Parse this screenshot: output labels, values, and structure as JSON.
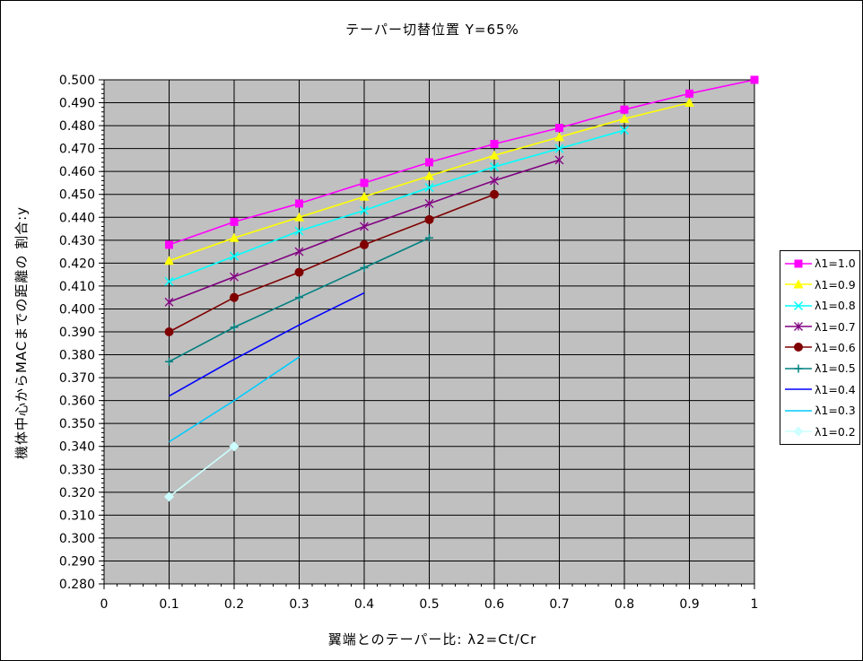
{
  "chart": {
    "title": "テーパー切替位置 Y=65%"
  },
  "chart_data": {
    "type": "line",
    "title": "テーパー切替位置 Y=65%",
    "xlabel": "翼端とのテーパー比: λ2=Ct/Cr",
    "ylabel": "機体中心からMACまでの距離の 割合:y",
    "xlim": [
      0,
      1
    ],
    "ylim": [
      0.28,
      0.5
    ],
    "grid": true,
    "plot_bg": "#c0c0c0",
    "grid_color": "#000000",
    "legend_position": "right",
    "x_minor_step": 0.02,
    "y_minor_step": 0.002,
    "x_ticks": {
      "values": [
        0,
        0.1,
        0.2,
        0.3,
        0.4,
        0.5,
        0.6,
        0.7,
        0.8,
        0.9,
        1
      ],
      "labels": [
        "0",
        "0.1",
        "0.2",
        "0.3",
        "0.4",
        "0.5",
        "0.6",
        "0.7",
        "0.8",
        "0.9",
        "1"
      ]
    },
    "y_ticks": {
      "values": [
        0.28,
        0.29,
        0.3,
        0.31,
        0.32,
        0.33,
        0.34,
        0.35,
        0.36,
        0.37,
        0.38,
        0.39,
        0.4,
        0.41,
        0.42,
        0.43,
        0.44,
        0.45,
        0.46,
        0.47,
        0.48,
        0.49,
        0.5
      ],
      "labels": [
        "0.280",
        "0.290",
        "0.300",
        "0.310",
        "0.320",
        "0.330",
        "0.340",
        "0.350",
        "0.360",
        "0.370",
        "0.380",
        "0.390",
        "0.400",
        "0.410",
        "0.420",
        "0.430",
        "0.440",
        "0.450",
        "0.460",
        "0.470",
        "0.480",
        "0.490",
        "0.500"
      ]
    },
    "series": [
      {
        "name": "λ1=1.0",
        "color": "#FF00FF",
        "marker": "square",
        "x": [
          0.1,
          0.2,
          0.3,
          0.4,
          0.5,
          0.6,
          0.7,
          0.8,
          0.9,
          1.0
        ],
        "y": [
          0.428,
          0.438,
          0.446,
          0.455,
          0.464,
          0.472,
          0.479,
          0.487,
          0.494,
          0.5
        ]
      },
      {
        "name": "λ1=0.9",
        "color": "#FFFF00",
        "marker": "triangle",
        "x": [
          0.1,
          0.2,
          0.3,
          0.4,
          0.5,
          0.6,
          0.7,
          0.8,
          0.9
        ],
        "y": [
          0.421,
          0.431,
          0.44,
          0.449,
          0.458,
          0.467,
          0.475,
          0.483,
          0.49
        ]
      },
      {
        "name": "λ1=0.8",
        "color": "#00FFFF",
        "marker": "x",
        "x": [
          0.1,
          0.2,
          0.3,
          0.4,
          0.5,
          0.6,
          0.7,
          0.8
        ],
        "y": [
          0.412,
          0.423,
          0.434,
          0.443,
          0.453,
          0.462,
          0.47,
          0.478
        ]
      },
      {
        "name": "λ1=0.7",
        "color": "#800080",
        "marker": "asterisk",
        "x": [
          0.1,
          0.2,
          0.3,
          0.4,
          0.5,
          0.6,
          0.7
        ],
        "y": [
          0.403,
          0.414,
          0.425,
          0.436,
          0.446,
          0.456,
          0.465
        ]
      },
      {
        "name": "λ1=0.6",
        "color": "#800000",
        "marker": "circle",
        "x": [
          0.1,
          0.2,
          0.3,
          0.4,
          0.5,
          0.6
        ],
        "y": [
          0.39,
          0.405,
          0.416,
          0.428,
          0.439,
          0.45
        ]
      },
      {
        "name": "λ1=0.5",
        "color": "#008080",
        "marker": "plus",
        "x": [
          0.1,
          0.2,
          0.3,
          0.4,
          0.5
        ],
        "y": [
          0.377,
          0.392,
          0.405,
          0.418,
          0.431
        ]
      },
      {
        "name": "λ1=0.4",
        "color": "#0000FF",
        "marker": "none",
        "x": [
          0.1,
          0.2,
          0.3,
          0.4
        ],
        "y": [
          0.362,
          0.378,
          0.393,
          0.407
        ]
      },
      {
        "name": "λ1=0.3",
        "color": "#00CCFF",
        "marker": "none",
        "x": [
          0.1,
          0.2,
          0.3
        ],
        "y": [
          0.342,
          0.36,
          0.379
        ]
      },
      {
        "name": "λ1=0.2",
        "color": "#CCFFFF",
        "marker": "diamond",
        "x": [
          0.1,
          0.2
        ],
        "y": [
          0.318,
          0.34
        ]
      }
    ]
  }
}
